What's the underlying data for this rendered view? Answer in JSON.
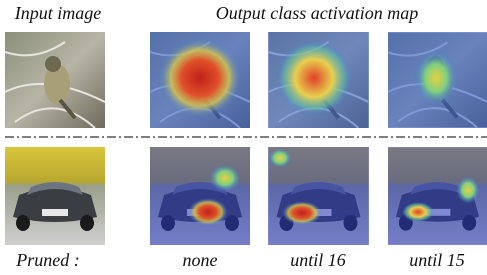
{
  "header": {
    "input_label": "Input image",
    "output_label": "Output class activation map"
  },
  "footer": {
    "row_label": "Pruned :",
    "columns": [
      "none",
      "until 16",
      "until 15"
    ]
  }
}
